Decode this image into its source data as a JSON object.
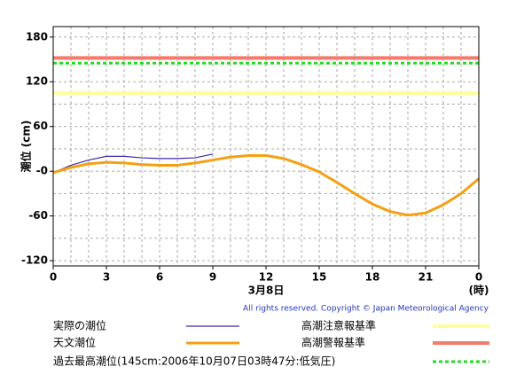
{
  "chart_data": {
    "type": "line",
    "y_label": "潮位 (cm)",
    "x_label": "3月8日",
    "x_unit": "(時)",
    "copyright": "All rights reserved. Copyright © Japan Meteorological Agency",
    "x": [
      0,
      1,
      2,
      3,
      4,
      5,
      6,
      7,
      8,
      9,
      10,
      11,
      12,
      13,
      14,
      15,
      16,
      17,
      18,
      19,
      20,
      21,
      22,
      23,
      24
    ],
    "series": [
      {
        "name": "実際の潮位",
        "color": "#3a2ca8",
        "width": 1.2,
        "values": [
          -2,
          8,
          15,
          20,
          20,
          18,
          17,
          17,
          18,
          23,
          null,
          null,
          null,
          null,
          null,
          null,
          null,
          null,
          null,
          null,
          null,
          null,
          null,
          null,
          null
        ]
      },
      {
        "name": "天文潮位",
        "color": "#f5a012",
        "width": 3,
        "values": [
          -2,
          5,
          10,
          12,
          11,
          9,
          8,
          8,
          11,
          15,
          19,
          21,
          21,
          17,
          9,
          -1,
          -15,
          -30,
          -44,
          -54,
          -59,
          -56,
          -45,
          -30,
          -10
        ]
      }
    ],
    "ref_lines": [
      {
        "name": "高潮注意報基準",
        "value": 105,
        "color": "#ffff99",
        "dash": false,
        "width": 4
      },
      {
        "name": "高潮警報基準",
        "value": 152,
        "color": "#f47b6b",
        "dash": false,
        "width": 4
      },
      {
        "name": "過去最高潮位(145cm:2006年10月07日03時47分:低気圧)",
        "value": 145,
        "color": "#22dd22",
        "dash": true,
        "width": 3
      }
    ],
    "xlim": [
      0,
      24
    ],
    "xticks": [
      0,
      3,
      6,
      9,
      12,
      15,
      18,
      21,
      {
        "value": 24,
        "label": "0"
      }
    ],
    "x_minor_ticks": [
      1,
      2,
      4,
      5,
      7,
      8,
      10,
      11,
      13,
      14,
      16,
      17,
      19,
      20,
      22,
      23
    ],
    "ylim": [
      -127,
      194
    ],
    "yticks": [
      180,
      120,
      60,
      {
        "value": 0,
        "label": "-0"
      },
      -60,
      -120
    ],
    "y_minor_ticks": [
      150,
      90,
      30,
      -30,
      -90
    ],
    "grid": true
  }
}
